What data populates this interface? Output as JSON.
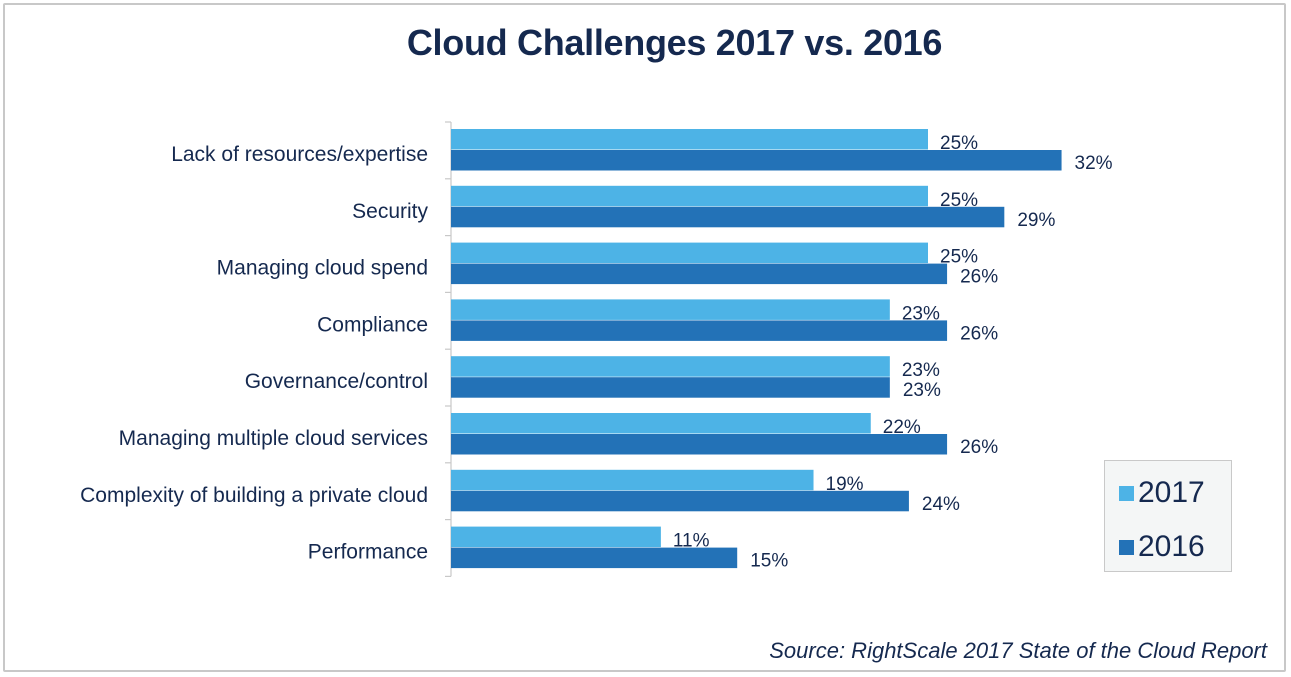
{
  "chart_data": {
    "type": "bar",
    "orientation": "horizontal",
    "title": "Cloud Challenges 2017 vs. 2016",
    "xlabel": "",
    "ylabel": "",
    "categories": [
      "Lack of resources/expertise",
      "Security",
      "Managing cloud spend",
      "Compliance",
      "Governance/control",
      "Managing multiple cloud services",
      "Complexity of building a private cloud",
      "Performance"
    ],
    "series": [
      {
        "name": "2017",
        "color": "#4db3e6",
        "values": [
          25,
          25,
          25,
          23,
          23,
          22,
          19,
          11
        ]
      },
      {
        "name": "2016",
        "color": "#2372b7",
        "values": [
          32,
          29,
          26,
          26,
          23,
          26,
          24,
          15
        ]
      }
    ],
    "value_suffix": "%",
    "xlim": [
      0,
      35
    ],
    "grid": false,
    "legend_position": "bottom-right",
    "source": "Source: RightScale 2017 State of the Cloud Report"
  },
  "colors": {
    "text": "#15294f",
    "axis": "#c8c8c8"
  }
}
